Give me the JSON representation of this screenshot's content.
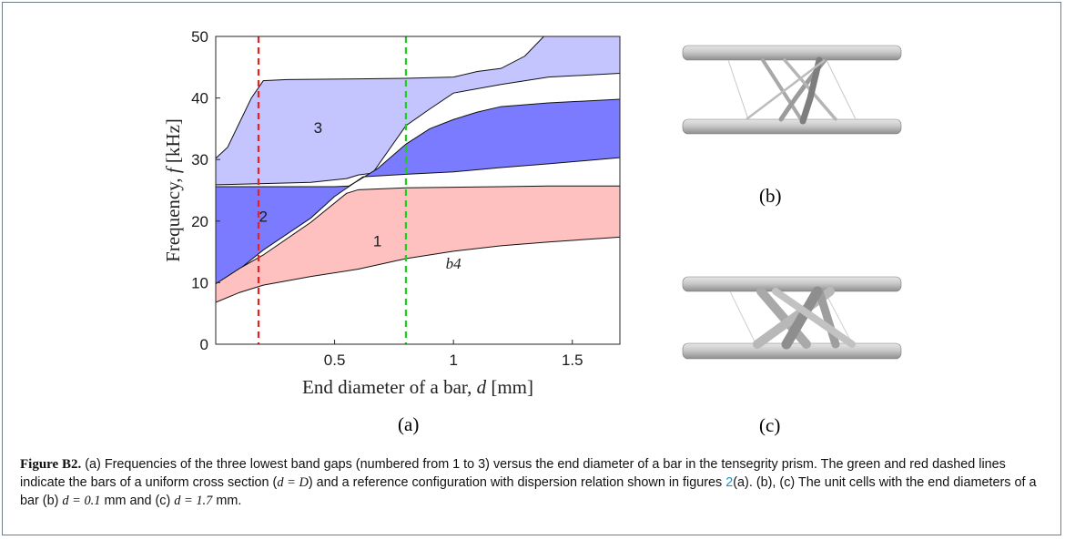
{
  "chart_data": {
    "type": "area",
    "xlabel": "End diameter of a bar, d [mm]",
    "ylabel": "Frequency, f [kHz]",
    "xlim": [
      0,
      1.7
    ],
    "ylim": [
      0,
      50
    ],
    "xticks": [
      "0.5",
      "1",
      "1.5"
    ],
    "xtick_values": [
      0.5,
      1,
      1.5
    ],
    "yticks": [
      "0",
      "10",
      "20",
      "30",
      "40",
      "50"
    ],
    "ytick_values": [
      0,
      10,
      20,
      30,
      40,
      50
    ],
    "grid": false,
    "colors": {
      "gap1": "#ffc0c0",
      "gap2": "#7b7bff",
      "gap3": "#c4c4ff",
      "red_line": "#e32222",
      "green_line": "#22c922"
    },
    "dashed_lines": [
      {
        "name": "red",
        "x": 0.18
      },
      {
        "name": "green",
        "x": 0.8
      }
    ],
    "band_labels": [
      {
        "text": "1",
        "x": 0.68,
        "y": 16.8
      },
      {
        "text": "2",
        "x": 0.2,
        "y": 20.8
      },
      {
        "text": "3",
        "x": 0.43,
        "y": 35.2
      },
      {
        "text": "b4",
        "x": 1.0,
        "y": 13.2
      }
    ],
    "gaps": [
      {
        "name": "1",
        "lower": [
          [
            0,
            6.8
          ],
          [
            0.1,
            8.4
          ],
          [
            0.2,
            9.6
          ],
          [
            0.4,
            11.0
          ],
          [
            0.6,
            12.2
          ],
          [
            0.8,
            13.9
          ],
          [
            1.0,
            15.1
          ],
          [
            1.2,
            16.0
          ],
          [
            1.4,
            16.6
          ],
          [
            1.7,
            17.4
          ]
        ],
        "upper": [
          [
            0,
            9.8
          ],
          [
            0.1,
            12.3
          ],
          [
            0.2,
            14.5
          ],
          [
            0.4,
            19.8
          ],
          [
            0.55,
            24.5
          ],
          [
            0.6,
            25.1
          ],
          [
            0.8,
            25.4
          ],
          [
            1.0,
            25.5
          ],
          [
            1.2,
            25.6
          ],
          [
            1.4,
            25.7
          ],
          [
            1.7,
            25.7
          ]
        ]
      },
      {
        "name": "2",
        "lower": [
          [
            0,
            9.2
          ],
          [
            0.1,
            12.2
          ],
          [
            0.2,
            15.3
          ],
          [
            0.4,
            20.5
          ],
          [
            0.5,
            24.0
          ],
          [
            0.56,
            25.6
          ],
          [
            0.62,
            27.2
          ],
          [
            0.8,
            27.6
          ],
          [
            1.0,
            28.0
          ],
          [
            1.2,
            28.7
          ],
          [
            1.4,
            29.3
          ],
          [
            1.7,
            30.3
          ]
        ],
        "upper": [
          [
            0,
            25.6
          ],
          [
            0.2,
            25.6
          ],
          [
            0.4,
            25.6
          ],
          [
            0.5,
            25.6
          ],
          [
            0.56,
            25.7
          ],
          [
            0.6,
            26.6
          ],
          [
            0.68,
            28.5
          ],
          [
            0.8,
            32.5
          ],
          [
            0.9,
            35.0
          ],
          [
            1.0,
            36.5
          ],
          [
            1.1,
            37.7
          ],
          [
            1.2,
            38.6
          ],
          [
            1.4,
            39.2
          ],
          [
            1.7,
            39.8
          ]
        ]
      },
      {
        "name": "3",
        "lower": [
          [
            0,
            25.9
          ],
          [
            0.2,
            26.1
          ],
          [
            0.4,
            26.3
          ],
          [
            0.55,
            26.9
          ],
          [
            0.6,
            27.5
          ],
          [
            0.66,
            27.8
          ],
          [
            0.8,
            35.5
          ],
          [
            0.9,
            38.2
          ],
          [
            1.0,
            40.8
          ],
          [
            1.2,
            42.2
          ],
          [
            1.4,
            43.4
          ],
          [
            1.7,
            44.0
          ]
        ],
        "upper": [
          [
            0,
            30.2
          ],
          [
            0.05,
            32.0
          ],
          [
            0.1,
            36.0
          ],
          [
            0.15,
            40.0
          ],
          [
            0.2,
            42.8
          ],
          [
            0.3,
            43.0
          ],
          [
            0.6,
            43.1
          ],
          [
            0.8,
            43.2
          ],
          [
            1.0,
            43.4
          ],
          [
            1.1,
            44.3
          ],
          [
            1.2,
            44.8
          ],
          [
            1.3,
            46.8
          ],
          [
            1.38,
            50.0
          ],
          [
            1.7,
            50.0
          ]
        ]
      }
    ]
  },
  "labels": {
    "a": "(a)",
    "b": "(b)",
    "c": "(c)"
  },
  "caption": {
    "label": "Figure B2.",
    "part1": " (a) Frequencies of the three lowest band gaps (numbered from 1 to 3) versus the end diameter of a bar in the tensegrity prism. The green and red dashed lines indicate the bars of a uniform cross section (",
    "math1": "d = D",
    "part2": ") and a reference configuration with dispersion relation shown in figures ",
    "link": "2",
    "part3": "(a). (b), (c) The unit cells with the end diameters of a bar (b) ",
    "math2": "d = 0.1",
    "part4": " mm and (c) ",
    "math3": "d = 1.7",
    "part5": " mm."
  }
}
